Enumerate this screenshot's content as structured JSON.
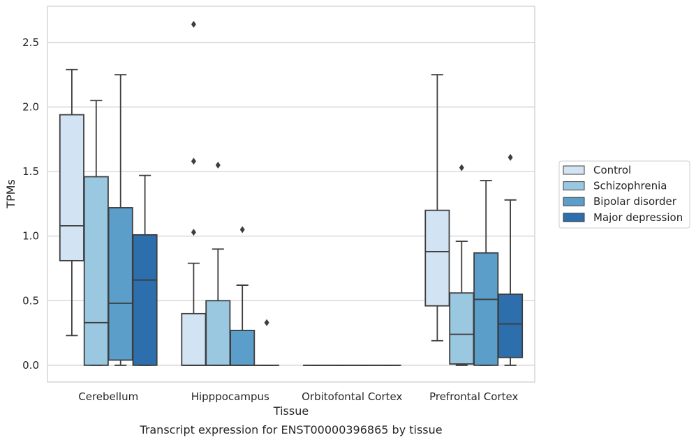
{
  "chart_data": {
    "type": "box",
    "xlabel": "Tissue",
    "ylabel": "TPMs",
    "caption": "Transcript expression for ENST00000396865 by tissue",
    "ylim": [
      -0.13,
      2.78
    ],
    "yticks": [
      "0.0",
      "0.5",
      "1.0",
      "1.5",
      "2.0",
      "2.5"
    ],
    "grid": "horizontal",
    "legend_position": "right",
    "categories": [
      "Cerebellum",
      "Hipppocampus",
      "Orbitofontal Cortex",
      "Prefrontal Cortex"
    ],
    "series": [
      {
        "name": "Control",
        "color": "#d2e3f3",
        "boxes": [
          {
            "whislo": 0.23,
            "q1": 0.81,
            "med": 1.08,
            "q3": 1.94,
            "whishi": 2.29,
            "fliers": []
          },
          {
            "whislo": 0.0,
            "q1": 0.0,
            "med": 0.0,
            "q3": 0.4,
            "whishi": 0.79,
            "fliers": [
              1.03,
              1.58,
              2.64
            ]
          },
          {
            "whislo": 0.0,
            "q1": 0.0,
            "med": 0.0,
            "q3": 0.0,
            "whishi": 0.0,
            "fliers": []
          },
          {
            "whislo": 0.19,
            "q1": 0.46,
            "med": 0.88,
            "q3": 1.2,
            "whishi": 2.25,
            "fliers": []
          }
        ]
      },
      {
        "name": "Schizophrenia",
        "color": "#9ac8e0",
        "boxes": [
          {
            "whislo": 0.0,
            "q1": 0.0,
            "med": 0.33,
            "q3": 1.46,
            "whishi": 2.05,
            "fliers": []
          },
          {
            "whislo": 0.0,
            "q1": 0.0,
            "med": 0.0,
            "q3": 0.5,
            "whishi": 0.9,
            "fliers": [
              1.55
            ]
          },
          {
            "whislo": 0.0,
            "q1": 0.0,
            "med": 0.0,
            "q3": 0.0,
            "whishi": 0.0,
            "fliers": []
          },
          {
            "whislo": 0.0,
            "q1": 0.01,
            "med": 0.24,
            "q3": 0.56,
            "whishi": 0.96,
            "fliers": [
              1.53
            ]
          }
        ]
      },
      {
        "name": "Bipolar disorder",
        "color": "#5a9ec9",
        "boxes": [
          {
            "whislo": 0.0,
            "q1": 0.04,
            "med": 0.48,
            "q3": 1.22,
            "whishi": 2.25,
            "fliers": []
          },
          {
            "whislo": 0.0,
            "q1": 0.0,
            "med": 0.0,
            "q3": 0.27,
            "whishi": 0.62,
            "fliers": [
              1.05
            ]
          },
          {
            "whislo": 0.0,
            "q1": 0.0,
            "med": 0.0,
            "q3": 0.0,
            "whishi": 0.0,
            "fliers": []
          },
          {
            "whislo": 0.0,
            "q1": 0.0,
            "med": 0.51,
            "q3": 0.87,
            "whishi": 1.43,
            "fliers": []
          }
        ]
      },
      {
        "name": "Major depression",
        "color": "#2c6fac",
        "boxes": [
          {
            "whislo": 0.0,
            "q1": 0.0,
            "med": 0.66,
            "q3": 1.01,
            "whishi": 1.47,
            "fliers": []
          },
          {
            "whislo": 0.0,
            "q1": 0.0,
            "med": 0.0,
            "q3": 0.0,
            "whishi": 0.0,
            "fliers": [
              0.33
            ]
          },
          {
            "whislo": 0.0,
            "q1": 0.0,
            "med": 0.0,
            "q3": 0.0,
            "whishi": 0.0,
            "fliers": []
          },
          {
            "whislo": 0.0,
            "q1": 0.06,
            "med": 0.32,
            "q3": 0.55,
            "whishi": 1.28,
            "fliers": [
              1.61
            ]
          }
        ]
      }
    ]
  }
}
